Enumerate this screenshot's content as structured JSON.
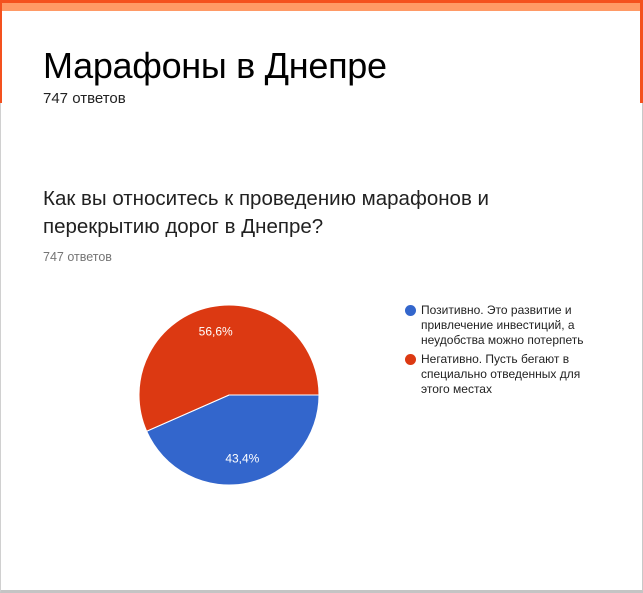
{
  "form": {
    "title": "Марафоны в Днепре",
    "response_count": "747 ответов",
    "accent_color": "#f4511e",
    "accent_light_color": "#ff9a66"
  },
  "question": {
    "title": "Как вы относитесь к проведению марафонов и перекрытию дорог в Днепре?",
    "response_count": "747 ответов"
  },
  "chart_data": {
    "type": "pie",
    "title": "Как вы относитесь к проведению марафонов и перекрытию дорог в Днепре?",
    "total_responses": 747,
    "categories": [
      "Позитивно. Это развитие и привлечение инвестиций, а неудобства можно потерпеть",
      "Негативно. Пусть бегают в специально отведенных для этого местах"
    ],
    "values": [
      43.4,
      56.6
    ],
    "value_labels": [
      "43,4%",
      "56,6%"
    ],
    "colors": [
      "#3366cc",
      "#dc3912"
    ],
    "legend_position": "right",
    "start_angle": "3 o'clock, clockwise"
  },
  "legend": {
    "items": [
      {
        "label": "Позитивно. Это развитие и привлечение инвестиций, а неудобства можно потерпеть",
        "color": "#3366cc"
      },
      {
        "label": "Негативно. Пусть бегают в специально отведенных для этого местах",
        "color": "#dc3912"
      }
    ]
  }
}
